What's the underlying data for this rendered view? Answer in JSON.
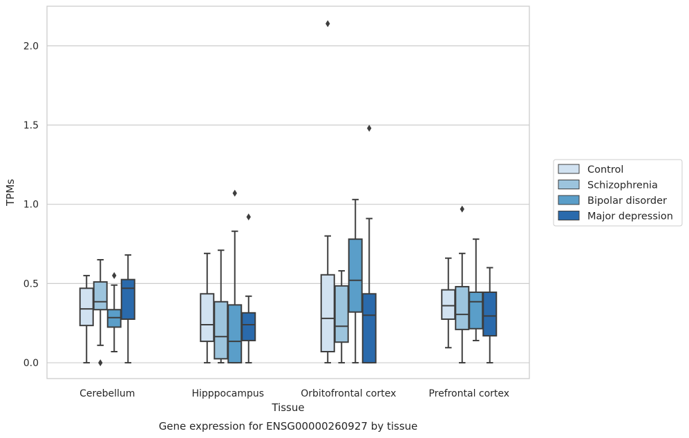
{
  "chart_data": {
    "type": "boxplot",
    "xlabel": "Tissue",
    "ylabel": "TPMs",
    "caption": "Gene expression for ENSG00000260927 by tissue",
    "ylim": [
      -0.1,
      2.25
    ],
    "yticks": [
      "0.0",
      "0.5",
      "1.0",
      "1.5",
      "2.0"
    ],
    "ytick_values": [
      0.0,
      0.5,
      1.0,
      1.5,
      2.0
    ],
    "grid": "horizontal",
    "legend_position": "right-outside",
    "categories": [
      "Cerebellum",
      "Hipppocampus",
      "Orbitofrontal cortex",
      "Prefrontal cortex"
    ],
    "series": [
      {
        "name": "Control",
        "color": "#d1e2f1",
        "boxes": [
          {
            "whislo": 0.0,
            "q1": 0.235,
            "med": 0.34,
            "q3": 0.47,
            "whishi": 0.55,
            "fliers": []
          },
          {
            "whislo": 0.0,
            "q1": 0.135,
            "med": 0.24,
            "q3": 0.435,
            "whishi": 0.69,
            "fliers": []
          },
          {
            "whislo": 0.0,
            "q1": 0.07,
            "med": 0.28,
            "q3": 0.555,
            "whishi": 0.8,
            "fliers": [
              2.14
            ]
          },
          {
            "whislo": 0.095,
            "q1": 0.275,
            "med": 0.36,
            "q3": 0.46,
            "whishi": 0.66,
            "fliers": []
          }
        ]
      },
      {
        "name": "Schizophrenia",
        "color": "#9cc4dd",
        "boxes": [
          {
            "whislo": 0.11,
            "q1": 0.335,
            "med": 0.385,
            "q3": 0.51,
            "whishi": 0.65,
            "fliers": [
              0.0
            ]
          },
          {
            "whislo": 0.0,
            "q1": 0.025,
            "med": 0.165,
            "q3": 0.385,
            "whishi": 0.71,
            "fliers": []
          },
          {
            "whislo": 0.0,
            "q1": 0.13,
            "med": 0.23,
            "q3": 0.485,
            "whishi": 0.58,
            "fliers": []
          },
          {
            "whislo": 0.0,
            "q1": 0.21,
            "med": 0.305,
            "q3": 0.48,
            "whishi": 0.69,
            "fliers": [
              0.97
            ]
          }
        ]
      },
      {
        "name": "Bipolar disorder",
        "color": "#5a9ec9",
        "boxes": [
          {
            "whislo": 0.07,
            "q1": 0.225,
            "med": 0.285,
            "q3": 0.335,
            "whishi": 0.49,
            "fliers": [
              0.55
            ]
          },
          {
            "whislo": 0.0,
            "q1": 0.0,
            "med": 0.135,
            "q3": 0.365,
            "whishi": 0.83,
            "fliers": [
              1.07
            ]
          },
          {
            "whislo": 0.0,
            "q1": 0.32,
            "med": 0.52,
            "q3": 0.78,
            "whishi": 1.03,
            "fliers": []
          },
          {
            "whislo": 0.14,
            "q1": 0.215,
            "med": 0.385,
            "q3": 0.445,
            "whishi": 0.78,
            "fliers": []
          }
        ]
      },
      {
        "name": "Major depression",
        "color": "#2a6aac",
        "boxes": [
          {
            "whislo": 0.0,
            "q1": 0.275,
            "med": 0.47,
            "q3": 0.525,
            "whishi": 0.68,
            "fliers": []
          },
          {
            "whislo": 0.0,
            "q1": 0.14,
            "med": 0.24,
            "q3": 0.315,
            "whishi": 0.42,
            "fliers": [
              0.92
            ]
          },
          {
            "whislo": 0.0,
            "q1": 0.0,
            "med": 0.3,
            "q3": 0.435,
            "whishi": 0.91,
            "fliers": [
              1.48
            ]
          },
          {
            "whislo": 0.0,
            "q1": 0.17,
            "med": 0.295,
            "q3": 0.445,
            "whishi": 0.6,
            "fliers": []
          }
        ]
      }
    ]
  }
}
